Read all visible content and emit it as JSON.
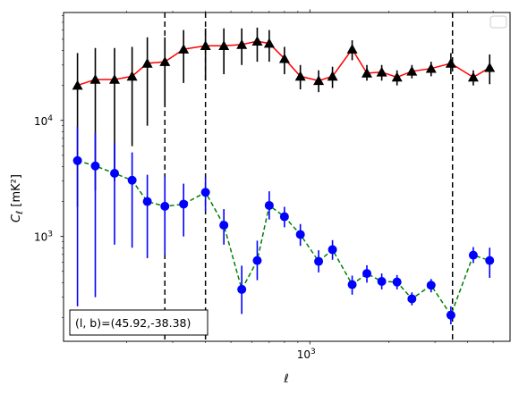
{
  "chart_data": {
    "type": "scatter",
    "title": "",
    "xlabel": "ℓ",
    "ylabel": "C_ℓ  [mK²]",
    "xscale": "log",
    "yscale": "log",
    "xlim": [
      115,
      5800
    ],
    "ylim": [
      125,
      85000
    ],
    "x_tick_labels": [
      {
        "value": 1000,
        "mantissa": "10",
        "exponent": "3"
      }
    ],
    "y_tick_labels": [
      {
        "value": 1000,
        "mantissa": "10",
        "exponent": "3"
      },
      {
        "value": 10000,
        "mantissa": "10",
        "exponent": "4"
      }
    ],
    "grid": false,
    "legend": {
      "position": "top-right",
      "entries": []
    },
    "annotation": {
      "text": "(l, b)=(45.92,-38.38)",
      "position": "bottom-left"
    },
    "vertical_lines_x": [
      280,
      400,
      3500
    ],
    "series": [
      {
        "marker": "triangle",
        "line_color": "#ff0000",
        "line_style": "solid",
        "marker_color": "#000000",
        "errorbar_color": "#000000",
        "points": [
          {
            "x": 130,
            "y": 20000,
            "lo": 1800,
            "hi": 38000
          },
          {
            "x": 152,
            "y": 22500,
            "lo": 2500,
            "hi": 42000
          },
          {
            "x": 180,
            "y": 22500,
            "lo": 3000,
            "hi": 42000
          },
          {
            "x": 210,
            "y": 24000,
            "lo": 6000,
            "hi": 43000
          },
          {
            "x": 240,
            "y": 31000,
            "lo": 9000,
            "hi": 52000
          },
          {
            "x": 280,
            "y": 32000,
            "lo": 13000,
            "hi": 52000
          },
          {
            "x": 330,
            "y": 41000,
            "lo": 21000,
            "hi": 60000
          },
          {
            "x": 400,
            "y": 44000,
            "lo": 22000,
            "hi": 62000
          },
          {
            "x": 470,
            "y": 44000,
            "lo": 25000,
            "hi": 62000
          },
          {
            "x": 550,
            "y": 45000,
            "lo": 30000,
            "hi": 62000
          },
          {
            "x": 630,
            "y": 48000,
            "lo": 32000,
            "hi": 63000
          },
          {
            "x": 700,
            "y": 46000,
            "lo": 32000,
            "hi": 60000
          },
          {
            "x": 800,
            "y": 34000,
            "lo": 25000,
            "hi": 43000
          },
          {
            "x": 920,
            "y": 24000,
            "lo": 18500,
            "hi": 30000
          },
          {
            "x": 1080,
            "y": 22000,
            "lo": 17500,
            "hi": 27000
          },
          {
            "x": 1220,
            "y": 24000,
            "lo": 19000,
            "hi": 29000
          },
          {
            "x": 1450,
            "y": 41000,
            "lo": 33000,
            "hi": 49000
          },
          {
            "x": 1650,
            "y": 25500,
            "lo": 22000,
            "hi": 30000
          },
          {
            "x": 1880,
            "y": 26000,
            "lo": 22000,
            "hi": 30000
          },
          {
            "x": 2150,
            "y": 23500,
            "lo": 20000,
            "hi": 27000
          },
          {
            "x": 2450,
            "y": 26500,
            "lo": 23000,
            "hi": 30000
          },
          {
            "x": 2900,
            "y": 28000,
            "lo": 24000,
            "hi": 32000
          },
          {
            "x": 3450,
            "y": 31000,
            "lo": 25000,
            "hi": 38000
          },
          {
            "x": 4200,
            "y": 23500,
            "lo": 20000,
            "hi": 27000
          },
          {
            "x": 4850,
            "y": 28500,
            "lo": 20500,
            "hi": 37000
          }
        ]
      },
      {
        "marker": "circle",
        "line_color": "#008000",
        "line_style": "dashed",
        "marker_color": "#0000ff",
        "errorbar_color": "#0000ff",
        "points": [
          {
            "x": 130,
            "y": 4500,
            "lo": 250,
            "hi": 8800
          },
          {
            "x": 152,
            "y": 4050,
            "lo": 300,
            "hi": 7800
          },
          {
            "x": 180,
            "y": 3500,
            "lo": 850,
            "hi": 6400
          },
          {
            "x": 210,
            "y": 3050,
            "lo": 800,
            "hi": 5300
          },
          {
            "x": 240,
            "y": 2000,
            "lo": 650,
            "hi": 3400
          },
          {
            "x": 280,
            "y": 1820,
            "lo": 700,
            "hi": 3250
          },
          {
            "x": 330,
            "y": 1900,
            "lo": 1000,
            "hi": 2850
          },
          {
            "x": 400,
            "y": 2400,
            "lo": 1650,
            "hi": 3250
          },
          {
            "x": 470,
            "y": 1250,
            "lo": 850,
            "hi": 1720
          },
          {
            "x": 550,
            "y": 350,
            "lo": 215,
            "hi": 560
          },
          {
            "x": 630,
            "y": 620,
            "lo": 420,
            "hi": 920
          },
          {
            "x": 700,
            "y": 1850,
            "lo": 1400,
            "hi": 2450
          },
          {
            "x": 800,
            "y": 1480,
            "lo": 1200,
            "hi": 1800
          },
          {
            "x": 920,
            "y": 1040,
            "lo": 830,
            "hi": 1280
          },
          {
            "x": 1080,
            "y": 610,
            "lo": 490,
            "hi": 760
          },
          {
            "x": 1220,
            "y": 770,
            "lo": 630,
            "hi": 930
          },
          {
            "x": 1450,
            "y": 385,
            "lo": 315,
            "hi": 460
          },
          {
            "x": 1650,
            "y": 480,
            "lo": 400,
            "hi": 565
          },
          {
            "x": 1880,
            "y": 410,
            "lo": 350,
            "hi": 480
          },
          {
            "x": 2150,
            "y": 405,
            "lo": 350,
            "hi": 465
          },
          {
            "x": 2450,
            "y": 290,
            "lo": 255,
            "hi": 330
          },
          {
            "x": 2900,
            "y": 380,
            "lo": 330,
            "hi": 430
          },
          {
            "x": 3450,
            "y": 210,
            "lo": 175,
            "hi": 250
          },
          {
            "x": 4200,
            "y": 690,
            "lo": 590,
            "hi": 810
          },
          {
            "x": 4850,
            "y": 620,
            "lo": 440,
            "hi": 800
          }
        ]
      }
    ]
  }
}
